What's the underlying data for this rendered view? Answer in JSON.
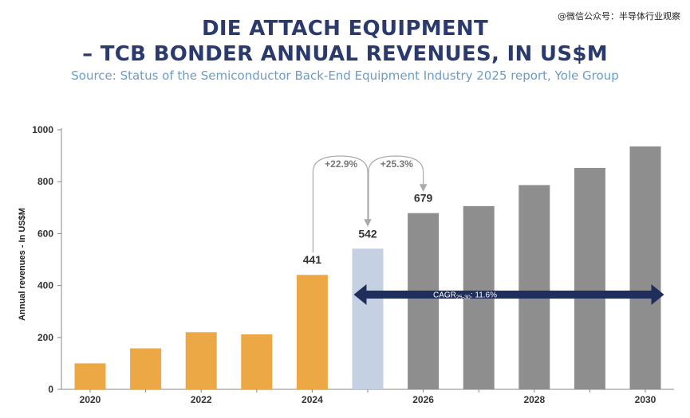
{
  "watermark": "@微信公众号：半导体行业观察",
  "header": {
    "title_line1": "DIE ATTACH EQUIPMENT",
    "title_line2": "– TCB BONDER ANNUAL REVENUES, IN US$M",
    "source": "Source: Status of the Semiconductor Back-End Equipment Industry 2025 report, Yole Group"
  },
  "colors": {
    "historical": "#eca845",
    "current": "#c5d0e2",
    "forecast": "#8e8e8e",
    "arrow": "#1f2e5a",
    "axis": "#888888"
  },
  "chart_data": {
    "type": "bar",
    "categories": [
      "2020",
      "2021",
      "2022",
      "2023",
      "2024",
      "2025",
      "2026",
      "2027",
      "2028",
      "2029",
      "2030"
    ],
    "x_tick_labels": [
      "2020",
      "2022",
      "2024",
      "2026",
      "2028",
      "2030"
    ],
    "values": [
      100,
      158,
      220,
      212,
      441,
      542,
      679,
      706,
      787,
      853,
      936
    ],
    "bar_groups": [
      "historical",
      "historical",
      "historical",
      "historical",
      "historical",
      "current",
      "forecast",
      "forecast",
      "forecast",
      "forecast",
      "forecast"
    ],
    "data_labels": [
      {
        "category": "2024",
        "text": "441"
      },
      {
        "category": "2025",
        "text": "542"
      },
      {
        "category": "2026",
        "text": "679"
      }
    ],
    "growth_annotations": [
      {
        "from": "2024",
        "to": "2025",
        "text": "+22.9%"
      },
      {
        "from": "2025",
        "to": "2026",
        "text": "+25.3%"
      }
    ],
    "cagr": {
      "from": "2025",
      "to": "2030",
      "text_main": "CAGR",
      "text_sub": "25-30",
      "text_tail": ": 11.6%"
    },
    "title": "DIE ATTACH EQUIPMENT – TCB BONDER ANNUAL REVENUES, IN US$M",
    "xlabel": "",
    "ylabel": "Annual revenues - In US$M",
    "ylim": [
      0,
      1000
    ],
    "yticks": [
      0,
      200,
      400,
      600,
      800,
      1000
    ],
    "grid": false,
    "legend": "none"
  }
}
